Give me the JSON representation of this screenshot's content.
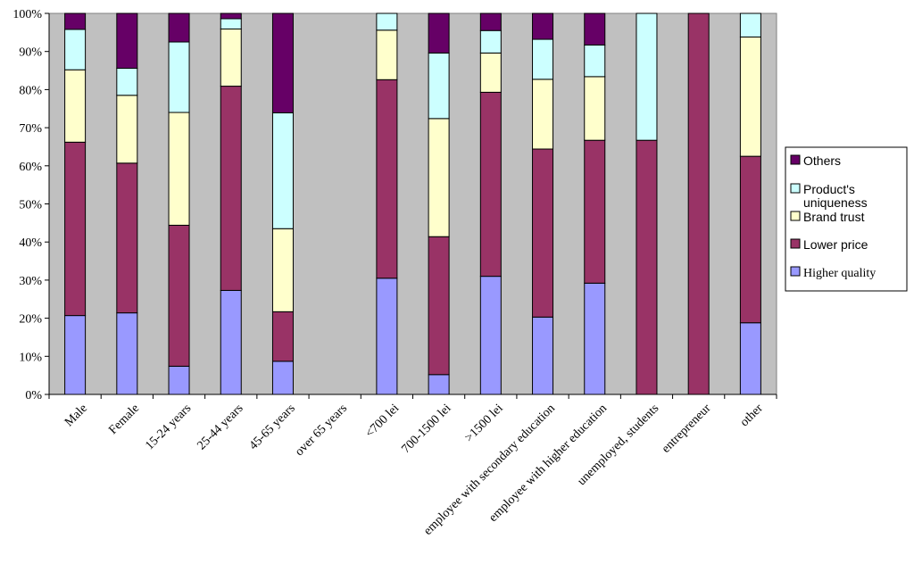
{
  "chart_data": {
    "type": "bar",
    "stacked": true,
    "percent": true,
    "title": "",
    "xlabel": "",
    "ylabel": "",
    "ylim": [
      0,
      100
    ],
    "y_ticks": [
      "0%",
      "10%",
      "20%",
      "30%",
      "40%",
      "50%",
      "60%",
      "70%",
      "80%",
      "90%",
      "100%"
    ],
    "grid": false,
    "legend_position": "right",
    "categories": [
      "Male",
      "Female",
      "15-24 years",
      "25-44 years",
      "45-65  years",
      "over 65 years",
      "<700 lei",
      "700-1500 lei",
      ">1500 lei",
      "employee with secondary education",
      "employee with higher education",
      "unemployed, students",
      "entrepreneur",
      "other"
    ],
    "series": [
      {
        "name": "Higher quality",
        "color": "#9999ff",
        "values": [
          20.7,
          21.4,
          7.4,
          27.3,
          8.7,
          0,
          30.5,
          5.2,
          31.0,
          20.3,
          29.2,
          0,
          0,
          18.8
        ]
      },
      {
        "name": "Lower price",
        "color": "#993366",
        "values": [
          45.5,
          39.3,
          37.0,
          53.6,
          13.0,
          0,
          52.1,
          36.2,
          48.3,
          44.1,
          37.5,
          66.7,
          100,
          43.7
        ]
      },
      {
        "name": "Brand trust",
        "color": "#ffffcc",
        "values": [
          19.0,
          17.8,
          29.6,
          15.0,
          21.8,
          0,
          13.0,
          31.0,
          10.3,
          18.3,
          16.7,
          0,
          0,
          31.3
        ]
      },
      {
        "name": "Product's uniqueness",
        "color": "#ccffff",
        "values": [
          10.6,
          7.1,
          18.5,
          2.7,
          30.4,
          0,
          4.4,
          17.2,
          5.9,
          10.5,
          8.3,
          33.3,
          0,
          6.2
        ]
      },
      {
        "name": "Others",
        "color": "#660066",
        "values": [
          4.2,
          14.4,
          7.5,
          1.4,
          26.1,
          0,
          0,
          10.4,
          4.5,
          6.8,
          8.3,
          0,
          0,
          0
        ]
      }
    ],
    "legend_order": [
      "Others",
      "Product's uniqueness",
      "Brand trust",
      "Lower price",
      "Higher quality"
    ],
    "legend_labels": {
      "Others": [
        "Others"
      ],
      "Product's uniqueness": [
        "Product's",
        "uniqueness"
      ],
      "Brand trust": [
        "Brand trust"
      ],
      "Lower price": [
        "Lower price"
      ],
      "Higher quality": [
        "Higher quality"
      ]
    }
  }
}
